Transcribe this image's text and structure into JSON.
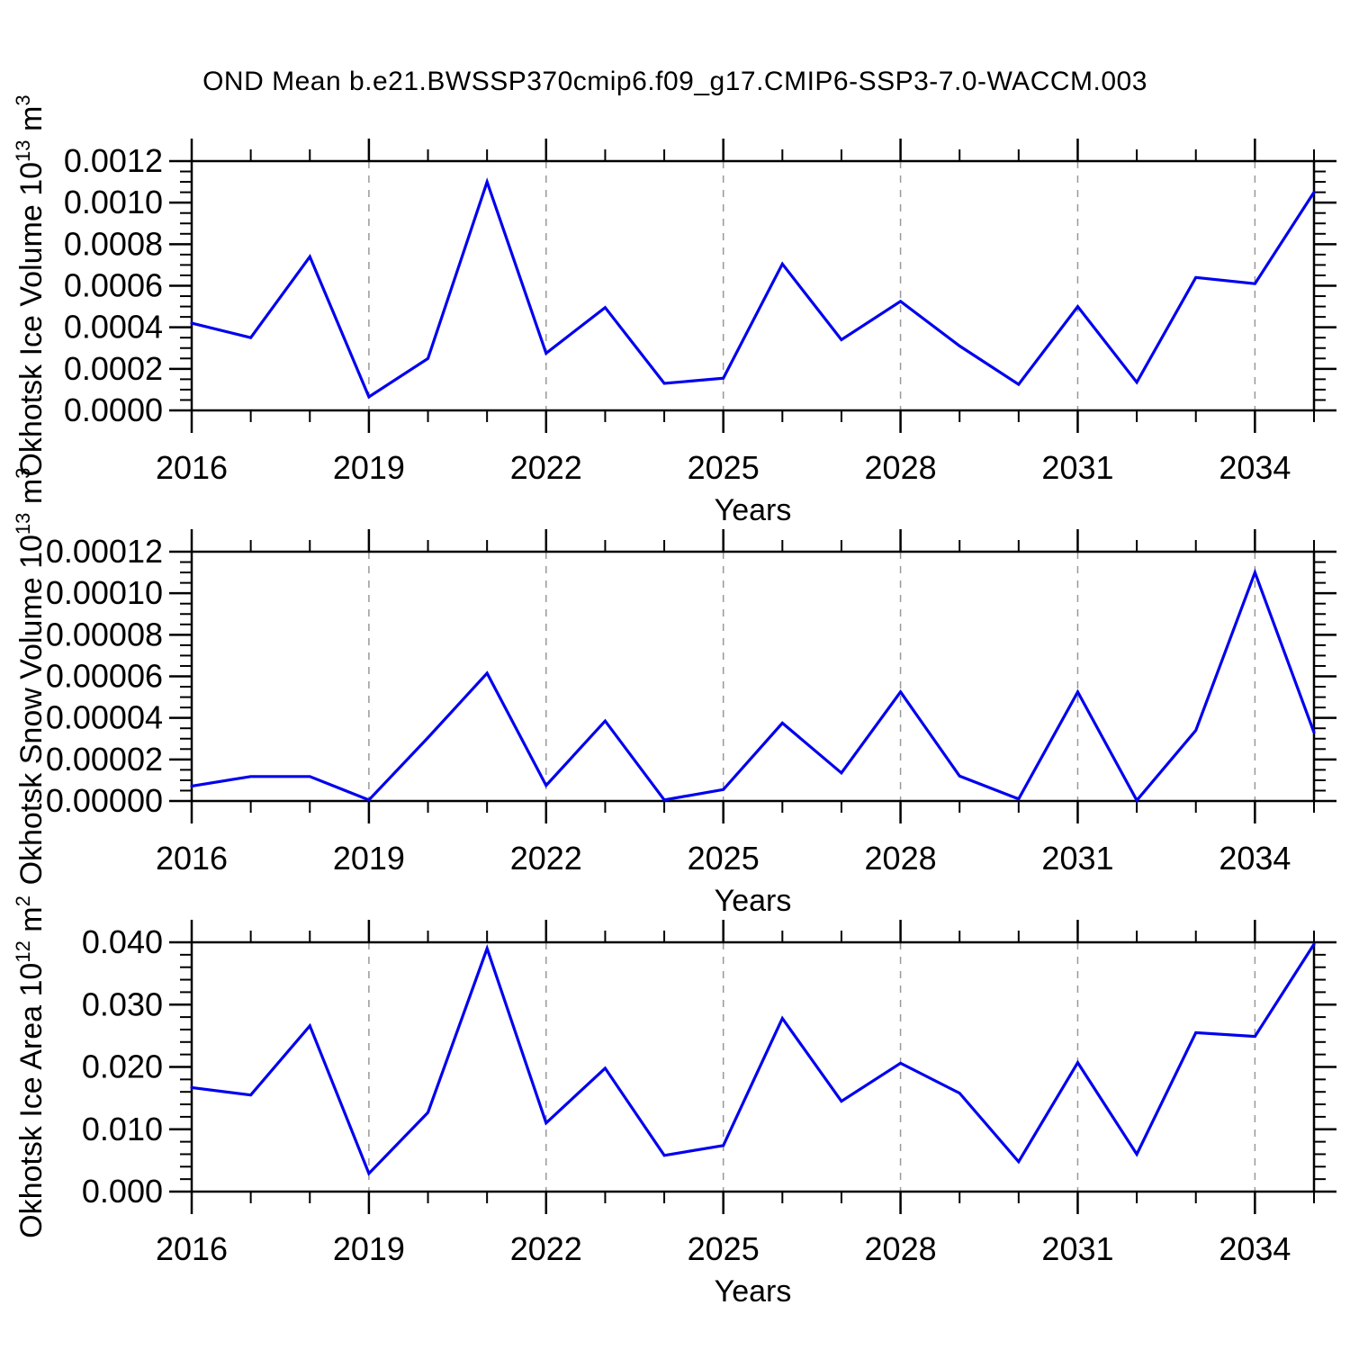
{
  "title": "OND Mean b.e21.BWSSP370cmip6.f09_g17.CMIP6-SSP3-7.0-WACCM.003",
  "colors": {
    "line": "#0000ee",
    "frame": "#000000",
    "grid_dash": "#999999",
    "text": "#000000",
    "background": "#ffffff"
  },
  "x_axis": {
    "title": "Years",
    "range": [
      2016,
      2035
    ],
    "years": [
      2016,
      2017,
      2018,
      2019,
      2020,
      2021,
      2022,
      2023,
      2024,
      2025,
      2026,
      2027,
      2028,
      2029,
      2030,
      2031,
      2032,
      2033,
      2034,
      2035
    ],
    "major_tick_years": [
      2016,
      2019,
      2022,
      2025,
      2028,
      2031,
      2034
    ],
    "major_tick_labels": [
      "2016",
      "2019",
      "2022",
      "2025",
      "2028",
      "2031",
      "2034"
    ],
    "minor_tick_every_years": 1,
    "dashed_gridline_years": [
      2019,
      2022,
      2025,
      2028,
      2031,
      2034
    ]
  },
  "chart_data": [
    {
      "id": "okhotsk-ice-volume",
      "type": "line",
      "ylabel": "Okhotsk Ice Volume 10^13 m^3",
      "ylabel_parts": [
        [
          "Okhotsk Ice Volume 10",
          false
        ],
        [
          "13",
          true
        ],
        [
          " m",
          false
        ],
        [
          "3",
          true
        ]
      ],
      "xlabel": "Years",
      "ylim": [
        0,
        0.0012
      ],
      "y_major_step": 0.0002,
      "y_minor_step": 5e-05,
      "y_tick_labels": [
        "0.0000",
        "0.0002",
        "0.0004",
        "0.0006",
        "0.0008",
        "0.0010",
        "0.0012"
      ],
      "grid": "vertical-dashed",
      "legend": "none",
      "x": [
        2016,
        2017,
        2018,
        2019,
        2020,
        2021,
        2022,
        2023,
        2024,
        2025,
        2026,
        2027,
        2028,
        2029,
        2030,
        2031,
        2032,
        2033,
        2034,
        2035
      ],
      "values": [
        0.00042,
        0.00035,
        0.00074,
        6.5e-05,
        0.00025,
        0.0011,
        0.000275,
        0.000495,
        0.00013,
        0.000155,
        0.000705,
        0.00034,
        0.000525,
        0.00031,
        0.000125,
        0.0005,
        0.000135,
        0.00064,
        0.00061,
        0.00105
      ]
    },
    {
      "id": "okhotsk-snow-volume",
      "type": "line",
      "ylabel": "Okhotsk Snow Volume 10^13 m^3",
      "ylabel_parts": [
        [
          "Okhotsk Snow Volume 10",
          false
        ],
        [
          "13",
          true
        ],
        [
          " m",
          false
        ],
        [
          "3",
          true
        ]
      ],
      "xlabel": "Years",
      "ylim": [
        0,
        0.00012
      ],
      "y_major_step": 2e-05,
      "y_minor_step": 5e-06,
      "y_tick_labels": [
        "0.00000",
        "0.00002",
        "0.00004",
        "0.00006",
        "0.00008",
        "0.00010",
        "0.00012"
      ],
      "grid": "vertical-dashed",
      "legend": "none",
      "x": [
        2016,
        2017,
        2018,
        2019,
        2020,
        2021,
        2022,
        2023,
        2024,
        2025,
        2026,
        2027,
        2028,
        2029,
        2030,
        2031,
        2032,
        2033,
        2034,
        2035
      ],
      "values": [
        7.2e-06,
        1.18e-05,
        1.18e-05,
        5e-07,
        3.05e-05,
        6.15e-05,
        7.5e-06,
        3.85e-05,
        5e-07,
        5.5e-06,
        3.75e-05,
        1.35e-05,
        5.25e-05,
        1.2e-05,
        1e-06,
        5.25e-05,
        3e-07,
        3.4e-05,
        0.00011,
        3.3e-05
      ]
    },
    {
      "id": "okhotsk-ice-area",
      "type": "line",
      "ylabel": "Okhotsk Ice Area 10^12 m^2",
      "ylabel_parts": [
        [
          "Okhotsk Ice Area 10",
          false
        ],
        [
          "12",
          true
        ],
        [
          " m",
          false
        ],
        [
          "2",
          true
        ]
      ],
      "xlabel": "Years",
      "ylim": [
        0,
        0.04
      ],
      "y_major_step": 0.01,
      "y_minor_step": 0.002,
      "y_tick_labels": [
        "0.000",
        "0.010",
        "0.020",
        "0.030",
        "0.040"
      ],
      "grid": "vertical-dashed",
      "legend": "none",
      "x": [
        2016,
        2017,
        2018,
        2019,
        2020,
        2021,
        2022,
        2023,
        2024,
        2025,
        2026,
        2027,
        2028,
        2029,
        2030,
        2031,
        2032,
        2033,
        2034,
        2035
      ],
      "values": [
        0.0167,
        0.0155,
        0.0266,
        0.0029,
        0.0127,
        0.039,
        0.011,
        0.0198,
        0.0058,
        0.0074,
        0.0278,
        0.0145,
        0.0206,
        0.0158,
        0.0048,
        0.0207,
        0.006,
        0.0255,
        0.0249,
        0.0397
      ]
    }
  ]
}
